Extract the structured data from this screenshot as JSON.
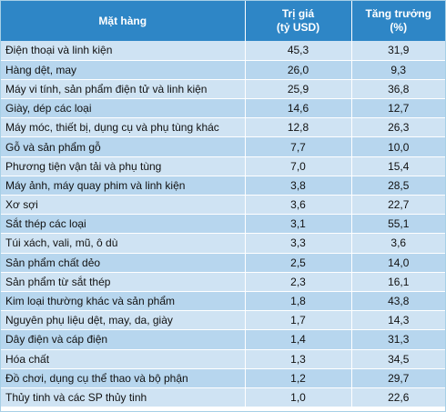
{
  "header": {
    "item": "Mặt hàng",
    "value_line1": "Trị giá",
    "value_line2": "(tỷ USD)",
    "growth_line1": "Tăng trưởng",
    "growth_line2": "(%)"
  },
  "rows": [
    {
      "name": "Điện thoại và linh kiện",
      "value": "45,3",
      "growth": "31,9"
    },
    {
      "name": "Hàng dệt, may",
      "value": "26,0",
      "growth": "9,3"
    },
    {
      "name": "Máy vi tính, sản phẩm điện tử và linh kiện",
      "value": "25,9",
      "growth": "36,8"
    },
    {
      "name": "Giày, dép các loại",
      "value": "14,6",
      "growth": "12,7"
    },
    {
      "name": "Máy móc, thiết bị, dụng cụ và phụ tùng khác",
      "value": "12,8",
      "growth": "26,3"
    },
    {
      "name": "Gỗ và sản phẩm gỗ",
      "value": "7,7",
      "growth": "10,0"
    },
    {
      "name": "Phương tiện vận tải và phụ tùng",
      "value": "7,0",
      "growth": "15,4"
    },
    {
      "name": "Máy ảnh, máy quay phim và linh kiện",
      "value": "3,8",
      "growth": "28,5"
    },
    {
      "name": "Xơ sợi",
      "value": "3,6",
      "growth": "22,7"
    },
    {
      "name": "Sắt thép các loại",
      "value": "3,1",
      "growth": "55,1"
    },
    {
      "name": "Túi xách, vali, mũ, ô dù",
      "value": "3,3",
      "growth": "3,6"
    },
    {
      "name": "Sản phẩm chất dẻo",
      "value": "2,5",
      "growth": "14,0"
    },
    {
      "name": "Sản phẩm từ sắt thép",
      "value": "2,3",
      "growth": "16,1"
    },
    {
      "name": "Kim loại thường khác và sản phẩm",
      "value": "1,8",
      "growth": "43,8"
    },
    {
      "name": "Nguyên phụ liệu dệt, may, da, giày",
      "value": "1,7",
      "growth": "14,3"
    },
    {
      "name": "Dây điện và cáp điện",
      "value": "1,4",
      "growth": "31,3"
    },
    {
      "name": "Hóa chất",
      "value": "1,3",
      "growth": "34,5"
    },
    {
      "name": "Đồ chơi, dụng cụ thể thao và bộ phận",
      "value": "1,2",
      "growth": "29,7"
    },
    {
      "name": "Thủy tinh và các SP thủy tinh",
      "value": "1,0",
      "growth": "22,6"
    }
  ],
  "colors": {
    "header_bg": "#2e86c6",
    "row_light": "#cfe3f3",
    "row_dark": "#b7d6ee"
  }
}
